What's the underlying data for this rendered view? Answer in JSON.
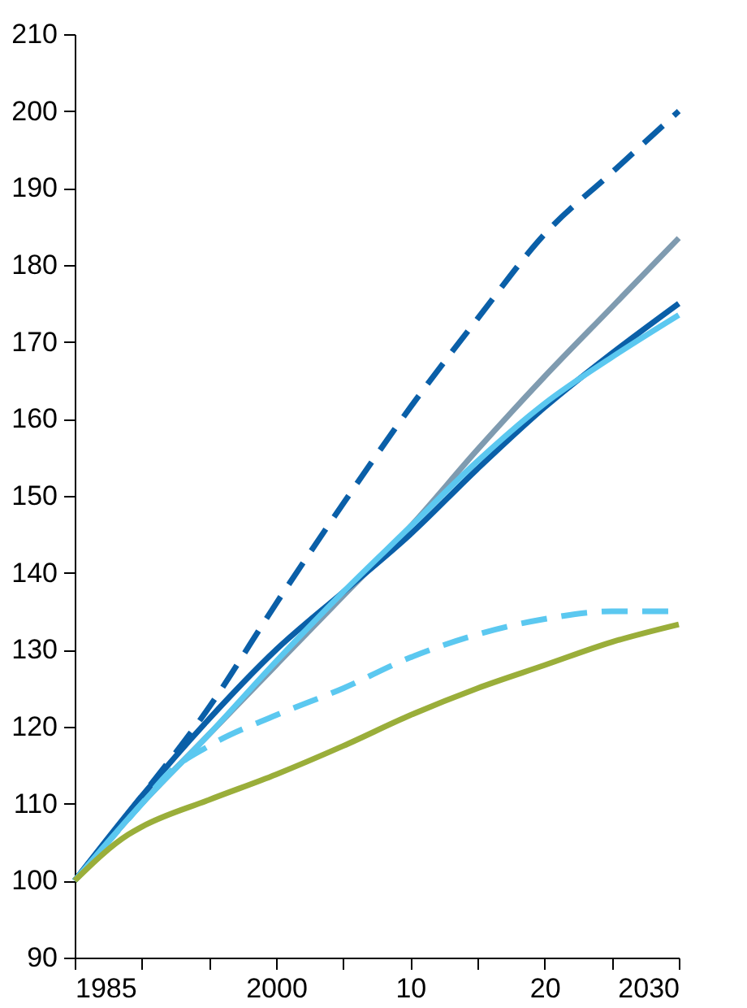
{
  "chart_data": {
    "type": "line",
    "x": [
      1985,
      1990,
      1995,
      2000,
      2005,
      2010,
      2015,
      2020,
      2025,
      2030
    ],
    "series": [
      {
        "color": "#0a5fa8",
        "line_style": "dashed",
        "values": [
          100,
          111,
          122.5,
          136,
          149,
          161.5,
          173,
          184,
          192,
          200
        ]
      },
      {
        "color": "#7f9bb0",
        "values": [
          100,
          110,
          119,
          128,
          137,
          146,
          156,
          165.5,
          174.5,
          183.5
        ]
      },
      {
        "color": "#0a5fa8",
        "values": [
          100,
          111,
          121,
          130,
          137.5,
          145,
          153.5,
          161.5,
          168.5,
          175
        ]
      },
      {
        "color": "#5bc8f0",
        "values": [
          100,
          110,
          119,
          128.5,
          137.5,
          146,
          154.5,
          162,
          168,
          173.5
        ]
      },
      {
        "color": "#5bc8f0",
        "line_style": "dashed",
        "x": [
          1985,
          1990,
          1992,
          1995,
          2000,
          2005,
          2010,
          2015,
          2020,
          2025,
          2030
        ],
        "values": [
          100,
          110,
          114,
          117.5,
          121.5,
          125,
          129,
          132,
          134,
          135,
          135
        ]
      },
      {
        "color": "#9aae3a",
        "x": [
          1985,
          1989,
          1990,
          1995,
          2000,
          2005,
          2010,
          2015,
          2020,
          2025,
          2030
        ],
        "values": [
          100,
          106,
          107,
          110.5,
          113.8,
          117.5,
          121.5,
          125,
          128,
          131,
          133.3
        ]
      }
    ],
    "xlim": [
      1985,
      2030
    ],
    "xticks": [
      1985,
      {
        "value": 1990,
        "label": null
      },
      {
        "value": 1995,
        "label": null
      },
      2000,
      {
        "value": 2005,
        "label": null
      },
      {
        "value": 2010,
        "label": "10"
      },
      {
        "value": 2015,
        "label": null
      },
      {
        "value": 2020,
        "label": "20"
      },
      {
        "value": 2025,
        "label": null
      },
      2030
    ],
    "ylim": [
      90,
      210
    ],
    "yticks": [
      90,
      100,
      110,
      120,
      130,
      140,
      150,
      160,
      170,
      180,
      190,
      200,
      210
    ],
    "grid": false,
    "marker": "none"
  }
}
